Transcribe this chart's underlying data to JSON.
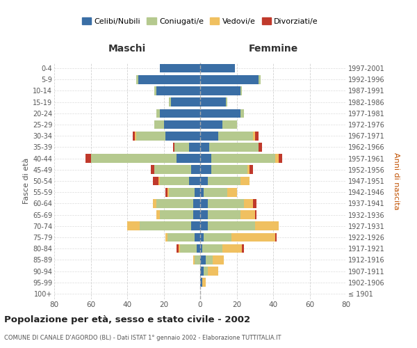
{
  "age_groups": [
    "100+",
    "95-99",
    "90-94",
    "85-89",
    "80-84",
    "75-79",
    "70-74",
    "65-69",
    "60-64",
    "55-59",
    "50-54",
    "45-49",
    "40-44",
    "35-39",
    "30-34",
    "25-29",
    "20-24",
    "15-19",
    "10-14",
    "5-9",
    "0-4"
  ],
  "birth_years": [
    "≤ 1901",
    "1902-1906",
    "1907-1911",
    "1912-1916",
    "1917-1921",
    "1922-1926",
    "1927-1931",
    "1932-1936",
    "1937-1941",
    "1942-1946",
    "1947-1951",
    "1952-1956",
    "1957-1961",
    "1962-1966",
    "1967-1971",
    "1972-1976",
    "1977-1981",
    "1982-1986",
    "1987-1991",
    "1992-1996",
    "1997-2001"
  ],
  "males": {
    "celibi": [
      0,
      0,
      0,
      0,
      2,
      3,
      5,
      4,
      4,
      3,
      6,
      5,
      13,
      6,
      19,
      20,
      22,
      16,
      24,
      34,
      22
    ],
    "coniugati": [
      0,
      0,
      0,
      3,
      9,
      15,
      28,
      18,
      20,
      14,
      16,
      20,
      47,
      8,
      16,
      5,
      2,
      1,
      1,
      1,
      0
    ],
    "vedovi": [
      0,
      0,
      0,
      1,
      1,
      1,
      7,
      2,
      2,
      1,
      1,
      0,
      0,
      0,
      1,
      0,
      0,
      0,
      0,
      0,
      0
    ],
    "divorziati": [
      0,
      0,
      0,
      0,
      1,
      0,
      0,
      0,
      0,
      1,
      3,
      2,
      3,
      1,
      1,
      0,
      0,
      0,
      0,
      0,
      0
    ]
  },
  "females": {
    "nubili": [
      0,
      1,
      2,
      3,
      1,
      2,
      4,
      4,
      4,
      2,
      4,
      6,
      6,
      5,
      10,
      12,
      22,
      14,
      22,
      32,
      19
    ],
    "coniugate": [
      0,
      0,
      2,
      4,
      11,
      15,
      26,
      18,
      20,
      13,
      18,
      20,
      35,
      27,
      19,
      8,
      2,
      1,
      1,
      1,
      0
    ],
    "vedove": [
      0,
      2,
      6,
      6,
      11,
      24,
      13,
      8,
      5,
      5,
      5,
      1,
      2,
      0,
      1,
      0,
      0,
      0,
      0,
      0,
      0
    ],
    "divorziate": [
      0,
      0,
      0,
      0,
      1,
      1,
      0,
      1,
      2,
      0,
      0,
      2,
      2,
      2,
      2,
      0,
      0,
      0,
      0,
      0,
      0
    ]
  },
  "color_celibi": "#3a6ea5",
  "color_coniugati": "#b5c98e",
  "color_vedovi": "#f0c060",
  "color_divorziati": "#c0392b",
  "title": "Popolazione per età, sesso e stato civile - 2002",
  "subtitle": "COMUNE DI CANALE D'AGORDO (BL) - Dati ISTAT 1° gennaio 2002 - Elaborazione TUTTITALIA.IT",
  "xlabel_left": "Maschi",
  "xlabel_right": "Femmine",
  "ylabel_left": "Fasce di età",
  "ylabel_right": "Anni di nascita",
  "xlim": 80,
  "legend_labels": [
    "Celibi/Nubili",
    "Coniugati/e",
    "Vedovi/e",
    "Divorziati/e"
  ],
  "bg_color": "#ffffff",
  "grid_color": "#cccccc"
}
